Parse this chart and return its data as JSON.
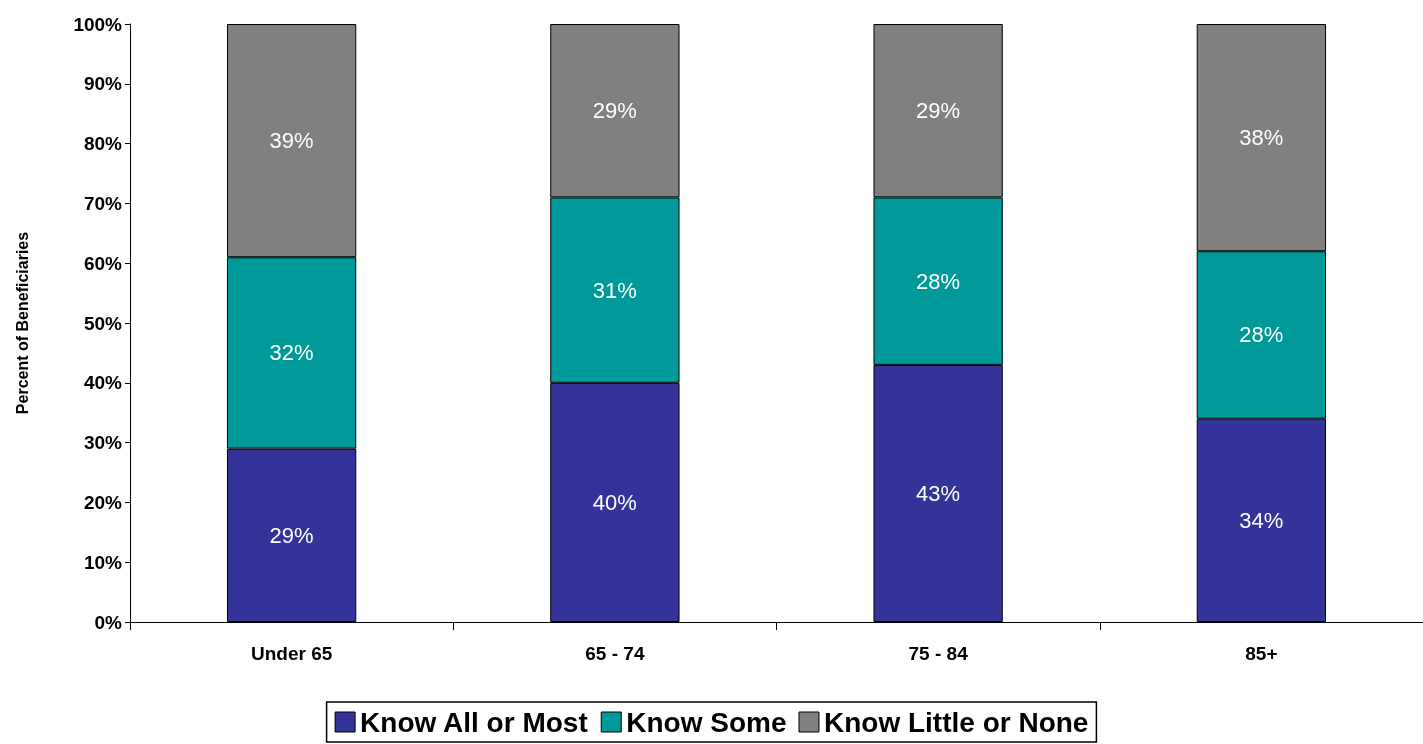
{
  "chart_data": {
    "type": "bar",
    "stacked": true,
    "ylabel": "Percent of Beneficiaries",
    "categories": [
      "Under 65",
      "65 - 74",
      "75 - 84",
      "85+"
    ],
    "series": [
      {
        "name": "Know All or Most",
        "color": "#333399",
        "values": [
          29,
          40,
          43,
          34
        ],
        "value_labels": [
          "29%",
          "40%",
          "43%",
          "34%"
        ]
      },
      {
        "name": "Know Some",
        "color": "#009999",
        "values": [
          32,
          31,
          28,
          28
        ],
        "value_labels": [
          "32%",
          "31%",
          "28%",
          "28%"
        ]
      },
      {
        "name": "Know Little or None",
        "color": "#808080",
        "values": [
          39,
          29,
          29,
          38
        ],
        "value_labels": [
          "39%",
          "29%",
          "29%",
          "38%"
        ]
      }
    ],
    "ylim": [
      0,
      100
    ],
    "yticks": [
      {
        "value": 0,
        "label": "0%"
      },
      {
        "value": 10,
        "label": "10%"
      },
      {
        "value": 20,
        "label": "20%"
      },
      {
        "value": 30,
        "label": "30%"
      },
      {
        "value": 40,
        "label": "40%"
      },
      {
        "value": 50,
        "label": "50%"
      },
      {
        "value": 60,
        "label": "60%"
      },
      {
        "value": 70,
        "label": "70%"
      },
      {
        "value": 80,
        "label": "80%"
      },
      {
        "value": 90,
        "label": "90%"
      },
      {
        "value": 100,
        "label": "100%"
      }
    ],
    "legend": "bottom",
    "grid": false
  }
}
